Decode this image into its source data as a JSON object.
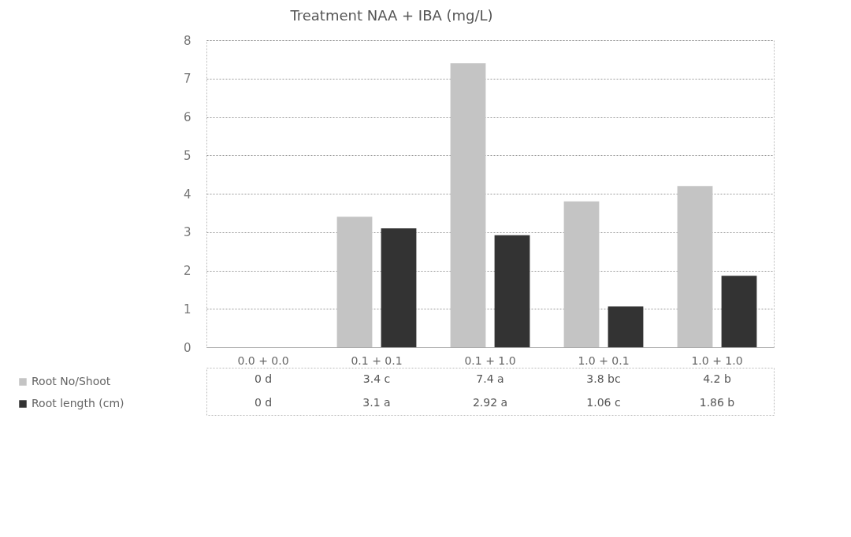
{
  "chart_data": {
    "type": "bar",
    "title": "Treatment NAA + IBA (mg/L)",
    "categories": [
      "0.0 + 0.0",
      "0.1 + 0.1",
      "0.1 + 1.0",
      "1.0 + 0.1",
      "1.0 + 1.0"
    ],
    "series": [
      {
        "name": "Root No/Shoot",
        "color": "#c4c4c4",
        "values": [
          0,
          3.4,
          7.4,
          3.8,
          4.2
        ],
        "value_labels": [
          "0  d",
          "3.4  c",
          "7.4  a",
          "3.8  bc",
          "4.2  b"
        ]
      },
      {
        "name": "Root length (cm)",
        "color": "#333333",
        "values": [
          0,
          3.1,
          2.92,
          1.06,
          1.86
        ],
        "value_labels": [
          "0  d",
          "3.1  a",
          "2.92 a",
          "1.06  c",
          "1.86  b"
        ]
      }
    ],
    "ylim": [
      0,
      8
    ],
    "yticks": [
      0,
      1,
      2,
      3,
      4,
      5,
      6,
      7,
      8
    ],
    "grid": "y",
    "legend": "bottom"
  }
}
